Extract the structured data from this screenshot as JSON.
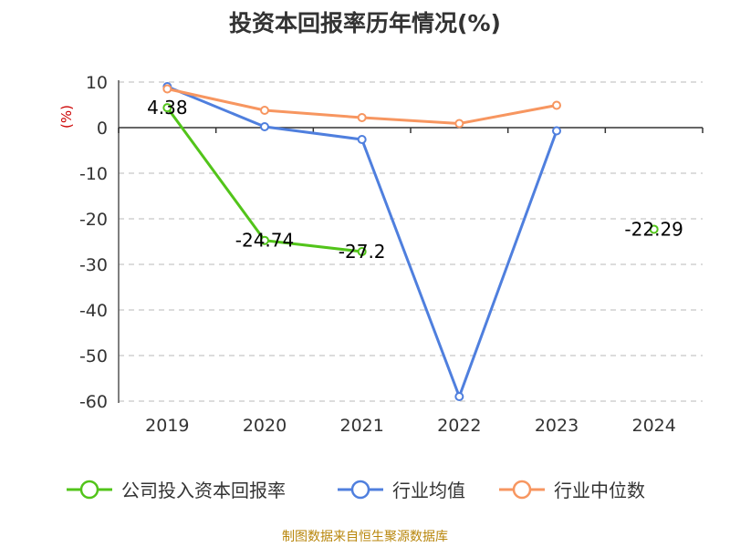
{
  "chart_data": {
    "type": "line",
    "title": "投资本回报率历年情况(%)",
    "ylabel": "(%)",
    "categories": [
      "2019",
      "2020",
      "2021",
      "2022",
      "2023",
      "2024"
    ],
    "ylim": [
      -60,
      10
    ],
    "yticks": [
      10,
      0,
      -10,
      -20,
      -30,
      -40,
      -50,
      -60
    ],
    "grid": true,
    "legend_position": "bottom",
    "series": [
      {
        "name": "公司投入资本回报率",
        "color": "#52c41a",
        "values": [
          4.38,
          -24.74,
          -27.2,
          null,
          null,
          -22.29
        ],
        "labels": [
          "4.38",
          "-24.74",
          "-27.2",
          "",
          "",
          "-22.29"
        ]
      },
      {
        "name": "行业均值",
        "color": "#4f7fde",
        "values": [
          9.0,
          0.2,
          -2.6,
          -59.0,
          -0.7,
          null
        ]
      },
      {
        "name": "行业中位数",
        "color": "#f79660",
        "values": [
          8.5,
          3.8,
          2.2,
          0.9,
          4.9,
          null
        ]
      }
    ]
  },
  "source": "制图数据来自恒生聚源数据库"
}
